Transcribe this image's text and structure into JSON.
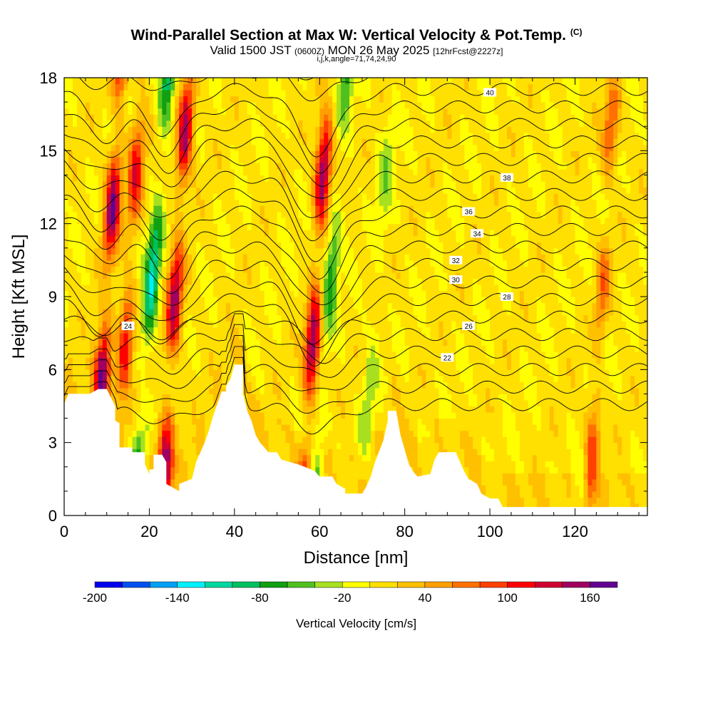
{
  "title": {
    "main": "Wind-Parallel Section at Max W: Vertical Velocity & Pot.Temp.",
    "copyright": "(C)",
    "valid_prefix": "Valid 1500 JST",
    "valid_utc": "(0600Z)",
    "valid_date": "MON 26 May 2025",
    "forecast": "[12hrFcst@2227z]",
    "indices": "i,j,k,angle=71,74,24,90"
  },
  "chart_data": {
    "type": "heatmap",
    "xlabel": "Distance [nm]",
    "ylabel": "Height [Kft MSL]",
    "xlim": [
      0,
      137
    ],
    "ylim": [
      0,
      18
    ],
    "x_ticks": [
      0,
      20,
      40,
      60,
      80,
      100,
      120
    ],
    "y_ticks": [
      0,
      3,
      6,
      9,
      12,
      15,
      18
    ],
    "colorbar": {
      "label": "Vertical Velocity [cm/s]",
      "levels": [
        -200,
        -180,
        -160,
        -140,
        -120,
        -100,
        -80,
        -60,
        -40,
        -20,
        0,
        20,
        40,
        60,
        80,
        100,
        120,
        140,
        160,
        180
      ],
      "tick_labels": [
        "-200",
        "-140",
        "-80",
        "-20",
        "40",
        "100",
        "160"
      ],
      "colors": [
        "#0000ee",
        "#0050f0",
        "#00a0f5",
        "#00f0ff",
        "#00d8a0",
        "#00c060",
        "#10a010",
        "#50c020",
        "#a8e020",
        "#ffff00",
        "#ffe000",
        "#ffc000",
        "#ffa000",
        "#ff7000",
        "#ff4000",
        "#ff0000",
        "#d00030",
        "#a00060",
        "#600090"
      ]
    },
    "terrain": [
      [
        0,
        4.6
      ],
      [
        1,
        5.0
      ],
      [
        6,
        5.0
      ],
      [
        8,
        5.2
      ],
      [
        10,
        5.2
      ],
      [
        12,
        4.5
      ],
      [
        12,
        3.9
      ],
      [
        13,
        3.8
      ],
      [
        13,
        2.8
      ],
      [
        16,
        2.8
      ],
      [
        16,
        2.6
      ],
      [
        19,
        2.6
      ],
      [
        19,
        2.1
      ],
      [
        20,
        1.7
      ],
      [
        20,
        1.9
      ],
      [
        21,
        1.9
      ],
      [
        21,
        2.5
      ],
      [
        23,
        2.5
      ],
      [
        24,
        2.2
      ],
      [
        24,
        1.3
      ],
      [
        27,
        1.0
      ],
      [
        27,
        1.3
      ],
      [
        30,
        1.5
      ],
      [
        31,
        2.2
      ],
      [
        33,
        3.0
      ],
      [
        34,
        3.5
      ],
      [
        35,
        4.1
      ],
      [
        36,
        4.6
      ],
      [
        37,
        5.1
      ],
      [
        38,
        5.1
      ],
      [
        38,
        5.3
      ],
      [
        39,
        5.6
      ],
      [
        40,
        6.2
      ],
      [
        42,
        6.2
      ],
      [
        42,
        5.0
      ],
      [
        43,
        4.3
      ],
      [
        44,
        3.9
      ],
      [
        45,
        3.3
      ],
      [
        46,
        3.0
      ],
      [
        48,
        2.6
      ],
      [
        50,
        2.6
      ],
      [
        51,
        2.3
      ],
      [
        53,
        2.2
      ],
      [
        55,
        2.1
      ],
      [
        58,
        1.9
      ],
      [
        59,
        1.8
      ],
      [
        60,
        1.6
      ],
      [
        62,
        1.6
      ],
      [
        63,
        1.6
      ],
      [
        64,
        1.3
      ],
      [
        66,
        1.1
      ],
      [
        66,
        0.9
      ],
      [
        70,
        0.9
      ],
      [
        71,
        1.2
      ],
      [
        72,
        1.6
      ],
      [
        73,
        2.2
      ],
      [
        75,
        3.1
      ],
      [
        76,
        3.9
      ],
      [
        76,
        4.3
      ],
      [
        78,
        4.3
      ],
      [
        79,
        3.3
      ],
      [
        80,
        2.7
      ],
      [
        81,
        2.1
      ],
      [
        82,
        1.8
      ],
      [
        83,
        1.6
      ],
      [
        86,
        1.7
      ],
      [
        87,
        2.3
      ],
      [
        88,
        2.6
      ],
      [
        92,
        2.6
      ],
      [
        93,
        2.2
      ],
      [
        94,
        1.8
      ],
      [
        95,
        1.5
      ],
      [
        97,
        1.3
      ],
      [
        98,
        0.9
      ],
      [
        100,
        0.7
      ],
      [
        102,
        0.7
      ],
      [
        103,
        0.35
      ],
      [
        137,
        0.35
      ]
    ],
    "theta_contours": [
      {
        "level": 22,
        "label": "22",
        "label_at": [
          90,
          6.5
        ]
      },
      {
        "level": 24,
        "label": "24",
        "label_at": [
          15,
          7.8
        ]
      },
      {
        "level": 26,
        "label": "26",
        "label_at": [
          95,
          7.8
        ]
      },
      {
        "level": 28,
        "label": "28",
        "label_at": [
          104,
          9.0
        ]
      },
      {
        "level": 30,
        "label": "30",
        "label_at": [
          92,
          9.7
        ]
      },
      {
        "level": 32,
        "label": "32",
        "label_at": [
          92,
          10.5
        ]
      },
      {
        "level": 34,
        "label": "34",
        "label_at": [
          97,
          11.6
        ]
      },
      {
        "level": 36,
        "label": "36",
        "label_at": [
          95,
          12.5
        ]
      },
      {
        "level": 38,
        "label": "38",
        "label_at": [
          104,
          13.9
        ]
      },
      {
        "level": 40,
        "label": "40",
        "label_at": [
          100,
          17.4
        ]
      }
    ],
    "updrafts": [
      {
        "x": 9,
        "w": 160
      },
      {
        "x": 14,
        "w": 110
      },
      {
        "x": 25,
        "w": 150
      },
      {
        "x": 58,
        "w": 160
      },
      {
        "x": 125,
        "w": 100
      }
    ],
    "downdrafts": [
      {
        "x": 19,
        "w": -130
      },
      {
        "x": 61,
        "w": -80
      },
      {
        "x": 72,
        "w": -40
      },
      {
        "x": 124,
        "w": -40
      }
    ]
  }
}
